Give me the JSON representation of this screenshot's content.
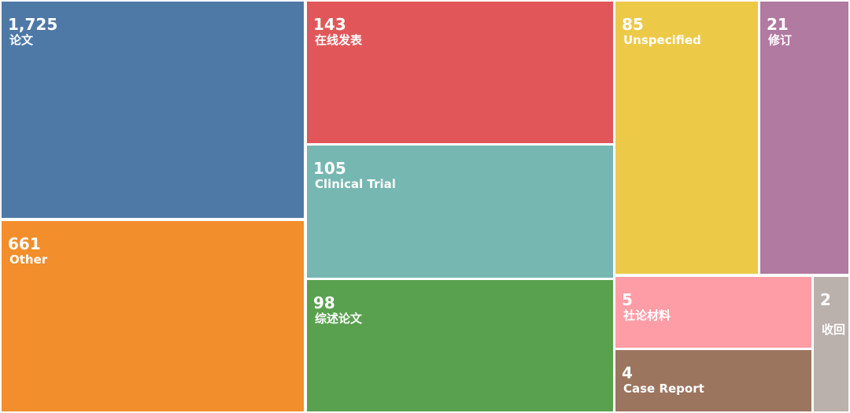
{
  "chart_data": {
    "type": "treemap",
    "categories": [
      "论文",
      "Other",
      "在线发表",
      "Clinical Trial",
      "综述论文",
      "Unspecified",
      "修订",
      "社论材料",
      "Case Report",
      "收回"
    ],
    "values": [
      1725,
      661,
      143,
      105,
      98,
      85,
      21,
      5,
      4,
      2
    ],
    "value_labels": [
      "1,725",
      "661",
      "143",
      "105",
      "98",
      "85",
      "21",
      "5",
      "4",
      "2"
    ],
    "colors": [
      "#4e79a7",
      "#f28e2b",
      "#e15759",
      "#76b7b2",
      "#59a14f",
      "#edc948",
      "#b07aa1",
      "#ff9da7",
      "#9c755f",
      "#bab0ac"
    ]
  }
}
